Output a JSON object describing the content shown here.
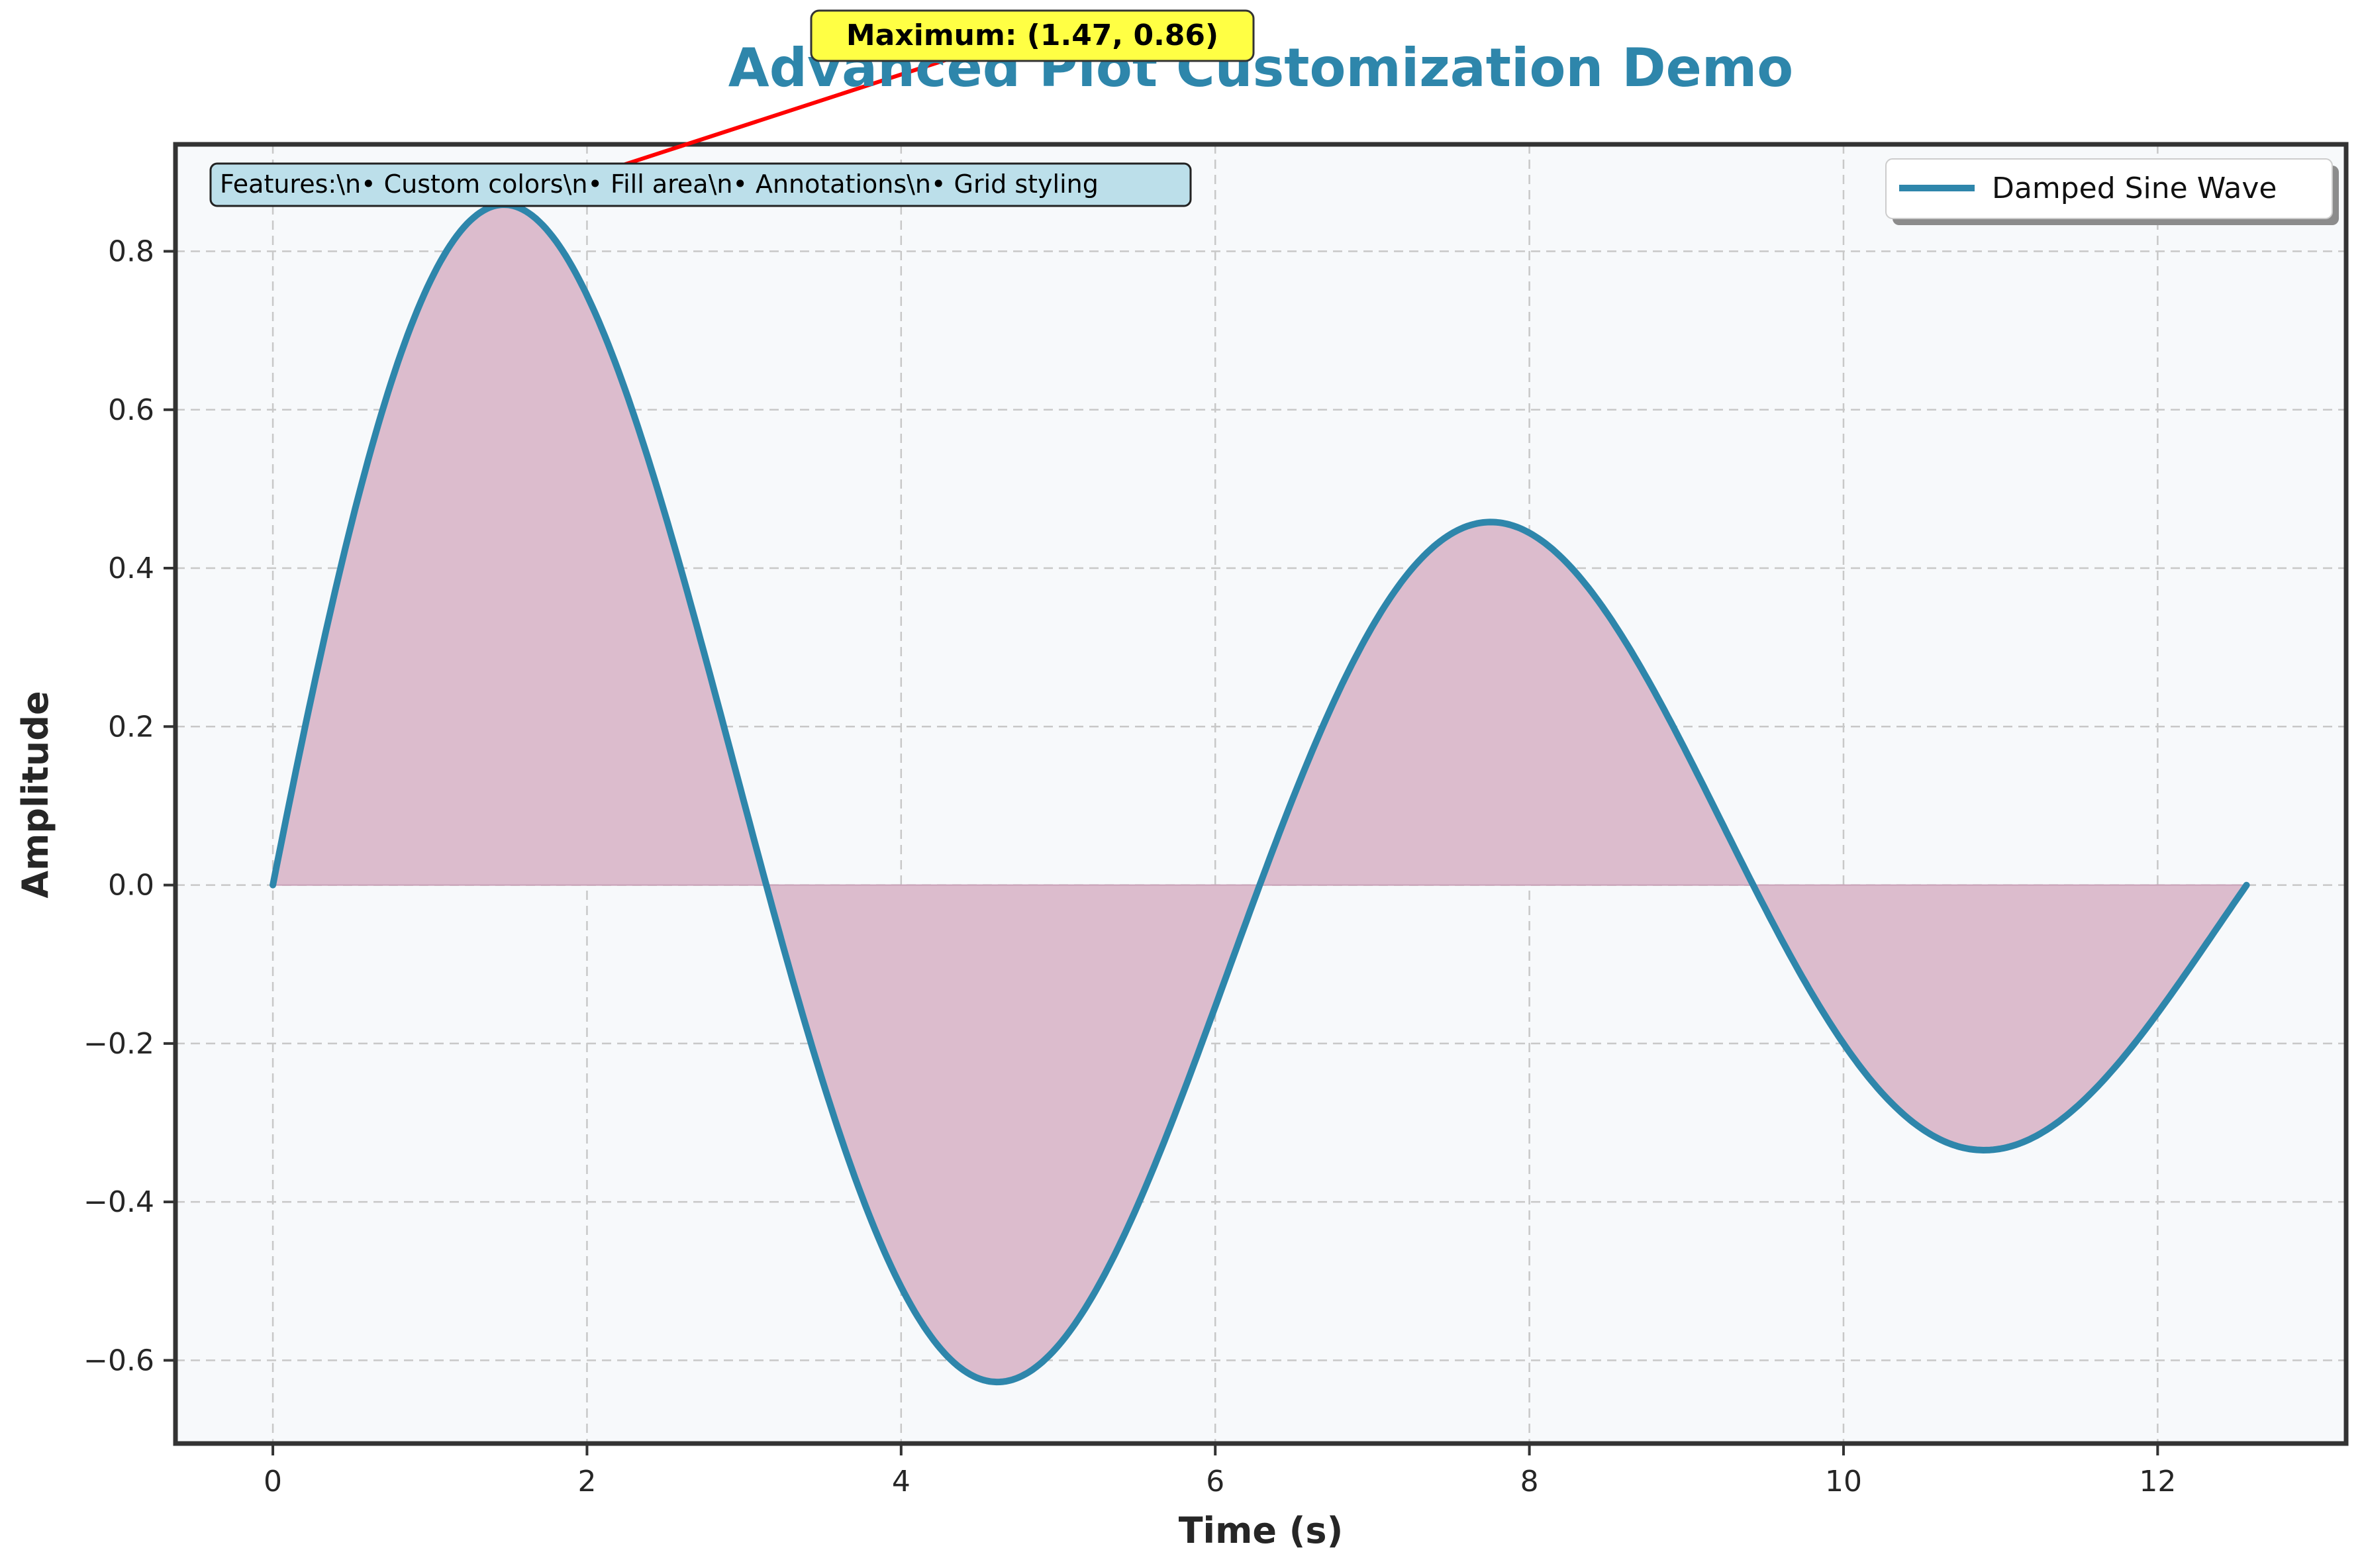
{
  "chart_data": {
    "type": "line",
    "title": "Advanced Plot Customization Demo",
    "xlabel": "Time (s)",
    "ylabel": "Amplitude",
    "xlim": [
      -0.62,
      13.2
    ],
    "ylim": [
      -0.705,
      0.935
    ],
    "xticks": [
      0,
      2,
      4,
      6,
      8,
      10,
      12
    ],
    "yticks": [
      -0.6,
      -0.4,
      -0.2,
      0.0,
      0.2,
      0.4,
      0.6,
      0.8
    ],
    "xtick_labels": [
      "0",
      "2",
      "4",
      "6",
      "8",
      "10",
      "12"
    ],
    "ytick_labels": [
      "−0.6",
      "−0.4",
      "−0.2",
      "0.0",
      "0.2",
      "0.4",
      "0.6",
      "0.8"
    ],
    "grid": true,
    "grid_style": "dashed",
    "legend_position": "upper right",
    "series": [
      {
        "name": "Damped Sine Wave",
        "function": "exp(-0.1*x)*sin(x)",
        "x_range": [
          0,
          12.566
        ],
        "samples": [
          [
            0,
            0.0
          ],
          [
            1,
            0.761
          ],
          [
            1.47,
            0.86
          ],
          [
            2,
            0.744
          ],
          [
            3,
            0.105
          ],
          [
            4,
            -0.507
          ],
          [
            4.61,
            -0.627
          ],
          [
            5,
            -0.582
          ],
          [
            6,
            -0.153
          ],
          [
            7,
            0.326
          ],
          [
            7.75,
            0.457
          ],
          [
            8,
            0.443
          ],
          [
            9,
            0.168
          ],
          [
            10,
            -0.2
          ],
          [
            10.89,
            -0.335
          ],
          [
            11,
            -0.333
          ],
          [
            12,
            -0.162
          ],
          [
            12.566,
            0.0
          ]
        ]
      }
    ],
    "fill_between": {
      "y0": 0,
      "color": "#d6b3c7"
    },
    "annotations": [
      {
        "text": "Maximum: (1.47, 0.86)",
        "x": 1.47,
        "y": 0.86,
        "box_color": "#ffff44",
        "arrow_color": "#ff0000"
      }
    ],
    "text_box": "Features:\\n• Custom colors\\n• Fill area\\n• Annotations\\n• Grid styling",
    "colors": {
      "line": "#2e86ab",
      "fill": "#dcbccd",
      "axes_bg": "#f7f9fb",
      "title": "#2e86ab",
      "grid": "#c8c8c8",
      "spine": "#333333",
      "text_box_bg": "#bcdfea"
    }
  }
}
